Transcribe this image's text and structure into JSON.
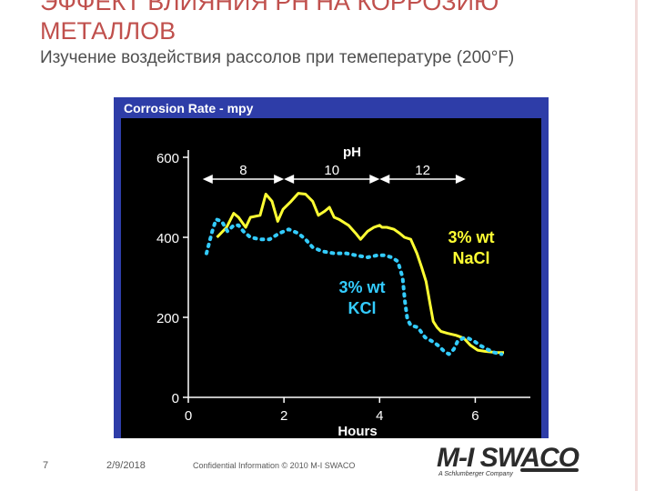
{
  "slide": {
    "title_line1": "ЭФФЕКТ ВЛИЯНИЯ pH НА КОРРОЗИЮ",
    "title_line2": "МЕТАЛЛОВ",
    "subtitle": "Изучение воздействия рассолов при темепературе (200°F)",
    "page_number": "7",
    "date": "2/9/2018",
    "confidential": "Confidential Information © 2010 M-I SWACO",
    "logo_text": "M-I SWACO",
    "logo_subtitle": "A Schlumberger Company",
    "colors": {
      "title": "#c0504d",
      "text": "#4f4f4f"
    }
  },
  "chart_data": {
    "type": "line",
    "title": "Corrosion Rate - mpy",
    "xlabel": "Hours",
    "ylabel": "",
    "xlim": [
      0,
      7
    ],
    "ylim": [
      0,
      600
    ],
    "x_ticks": [
      0,
      2,
      4,
      6
    ],
    "y_ticks": [
      0,
      200,
      400,
      600
    ],
    "grid": false,
    "background": "#000000",
    "panel_color": "#2e3da8",
    "ph_header": "pH",
    "ph_ranges": [
      {
        "label": "8",
        "x_start": 0.3,
        "x_end": 2.0
      },
      {
        "label": "10",
        "x_start": 2.0,
        "x_end": 4.0
      },
      {
        "label": "12",
        "x_start": 4.0,
        "x_end": 5.8
      }
    ],
    "series": [
      {
        "name": "3% wt NaCl",
        "label_lines": [
          "3% wt",
          "NaCl"
        ],
        "color": "#ffff33",
        "dash": false,
        "points": [
          [
            0.6,
            400
          ],
          [
            0.8,
            425
          ],
          [
            0.95,
            460
          ],
          [
            1.05,
            450
          ],
          [
            1.2,
            425
          ],
          [
            1.3,
            450
          ],
          [
            1.5,
            455
          ],
          [
            1.62,
            508
          ],
          [
            1.75,
            490
          ],
          [
            1.87,
            440
          ],
          [
            1.98,
            470
          ],
          [
            2.15,
            490
          ],
          [
            2.3,
            510
          ],
          [
            2.45,
            508
          ],
          [
            2.6,
            490
          ],
          [
            2.72,
            455
          ],
          [
            2.85,
            465
          ],
          [
            2.95,
            475
          ],
          [
            3.05,
            450
          ],
          [
            3.15,
            445
          ],
          [
            3.35,
            430
          ],
          [
            3.5,
            410
          ],
          [
            3.6,
            395
          ],
          [
            3.75,
            415
          ],
          [
            3.88,
            425
          ],
          [
            4.0,
            430
          ],
          [
            4.05,
            425
          ],
          [
            4.15,
            425
          ],
          [
            4.3,
            420
          ],
          [
            4.42,
            410
          ],
          [
            4.52,
            400
          ],
          [
            4.65,
            395
          ],
          [
            4.78,
            360
          ],
          [
            4.88,
            325
          ],
          [
            4.97,
            290
          ],
          [
            5.06,
            230
          ],
          [
            5.12,
            190
          ],
          [
            5.2,
            175
          ],
          [
            5.28,
            165
          ],
          [
            5.42,
            160
          ],
          [
            5.6,
            155
          ],
          [
            5.76,
            148
          ],
          [
            5.9,
            130
          ],
          [
            6.05,
            118
          ],
          [
            6.2,
            115
          ],
          [
            6.45,
            112
          ],
          [
            6.6,
            112
          ]
        ]
      },
      {
        "name": "3% wt KCl",
        "label_lines": [
          "3% wt",
          "KCl"
        ],
        "color": "#33ccff",
        "dash": true,
        "points": [
          [
            0.38,
            360
          ],
          [
            0.5,
            415
          ],
          [
            0.58,
            445
          ],
          [
            0.7,
            440
          ],
          [
            0.82,
            415
          ],
          [
            0.95,
            430
          ],
          [
            1.05,
            430
          ],
          [
            1.15,
            415
          ],
          [
            1.3,
            400
          ],
          [
            1.5,
            395
          ],
          [
            1.7,
            395
          ],
          [
            1.9,
            410
          ],
          [
            2.1,
            420
          ],
          [
            2.3,
            410
          ],
          [
            2.45,
            395
          ],
          [
            2.6,
            375
          ],
          [
            2.8,
            365
          ],
          [
            3.05,
            360
          ],
          [
            3.3,
            360
          ],
          [
            3.5,
            355
          ],
          [
            3.75,
            350
          ],
          [
            3.95,
            355
          ],
          [
            4.1,
            355
          ],
          [
            4.25,
            350
          ],
          [
            4.38,
            340
          ],
          [
            4.48,
            300
          ],
          [
            4.53,
            240
          ],
          [
            4.58,
            195
          ],
          [
            4.65,
            180
          ],
          [
            4.8,
            175
          ],
          [
            4.95,
            150
          ],
          [
            5.1,
            140
          ],
          [
            5.22,
            130
          ],
          [
            5.35,
            115
          ],
          [
            5.45,
            108
          ],
          [
            5.55,
            120
          ],
          [
            5.63,
            140
          ],
          [
            5.75,
            148
          ],
          [
            5.85,
            148
          ],
          [
            5.98,
            140
          ],
          [
            6.1,
            130
          ],
          [
            6.25,
            120
          ],
          [
            6.4,
            112
          ],
          [
            6.55,
            108
          ]
        ]
      }
    ]
  }
}
